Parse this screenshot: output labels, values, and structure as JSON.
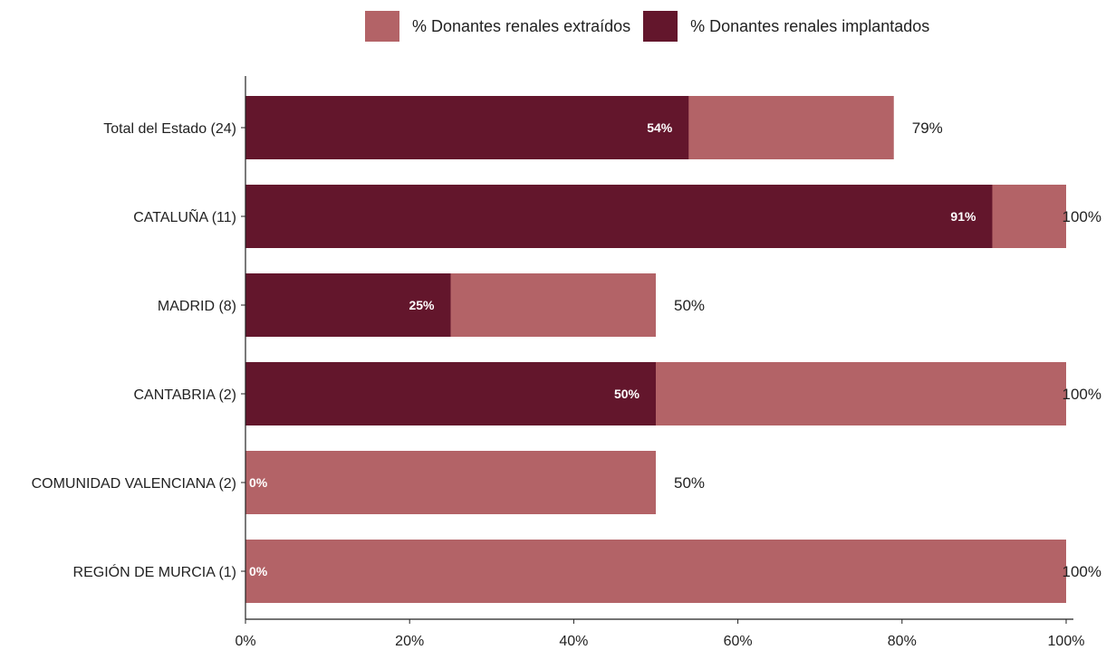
{
  "colors": {
    "extraidos": "#b36367",
    "implantados": "#63162c",
    "axis": "#222222",
    "inner_label": "#ffffff",
    "outer_label": "#222222"
  },
  "legend": {
    "items": [
      {
        "label": "% Donantes renales extraídos",
        "color_key": "extraidos"
      },
      {
        "label": "% Donantes renales implantados",
        "color_key": "implantados"
      }
    ]
  },
  "chart_data": {
    "type": "bar",
    "orientation": "horizontal",
    "categories": [
      "Total del Estado (24)",
      "CATALUÑA (11)",
      "MADRID (8)",
      "CANTABRIA (2)",
      "COMUNIDAD VALENCIANA (2)",
      "REGIÓN DE MURCIA (1)"
    ],
    "series": [
      {
        "name": "% Donantes renales extraídos",
        "values": [
          79,
          100,
          50,
          100,
          50,
          100
        ],
        "labels": [
          "79%",
          "100%",
          "50%",
          "100%",
          "50%",
          "100%"
        ]
      },
      {
        "name": "% Donantes renales implantados",
        "values": [
          54,
          91,
          25,
          50,
          0,
          0
        ],
        "labels": [
          "54%",
          "91%",
          "25%",
          "50%",
          "0%",
          "0%"
        ]
      }
    ],
    "xlim": [
      0,
      100
    ],
    "x_ticks": [
      "0%",
      "20%",
      "40%",
      "60%",
      "80%",
      "100%"
    ],
    "x_tick_values": [
      0,
      20,
      40,
      60,
      80,
      100
    ],
    "legend_position": "top",
    "grid": false
  }
}
